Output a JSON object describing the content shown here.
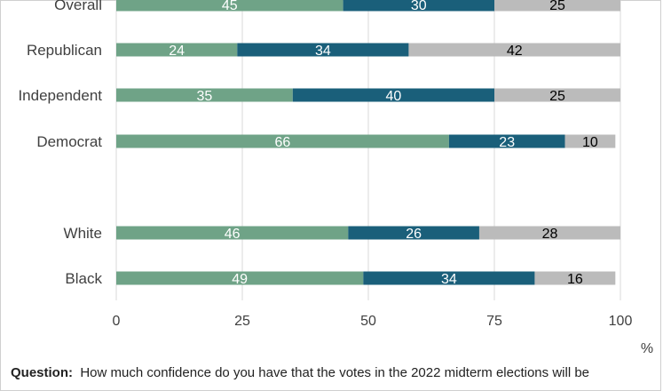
{
  "chart_data": {
    "type": "bar",
    "orientation": "horizontal",
    "stacked": true,
    "categories": [
      "Overall",
      "Republican",
      "Independent",
      "Democrat",
      "White",
      "Black"
    ],
    "series": [
      {
        "values": [
          45,
          24,
          35,
          66,
          46,
          49
        ],
        "color": "#6fa387",
        "label_color": "#ffffff"
      },
      {
        "values": [
          30,
          34,
          40,
          23,
          26,
          34
        ],
        "color": "#1a5f7a",
        "label_color": "#ffffff"
      },
      {
        "values": [
          25,
          42,
          25,
          10,
          28,
          16
        ],
        "color": "#bbbbbb",
        "label_color": "#000000"
      }
    ],
    "x_ticks": [
      "0",
      "25",
      "50",
      "75",
      "100"
    ],
    "xlim": [
      0,
      100
    ],
    "xunit": "%",
    "grid": true,
    "legend": "none"
  },
  "footer": {
    "question_label": "Question:",
    "question_text": "How much confidence do you have that the votes in the 2022 midterm elections will be"
  }
}
